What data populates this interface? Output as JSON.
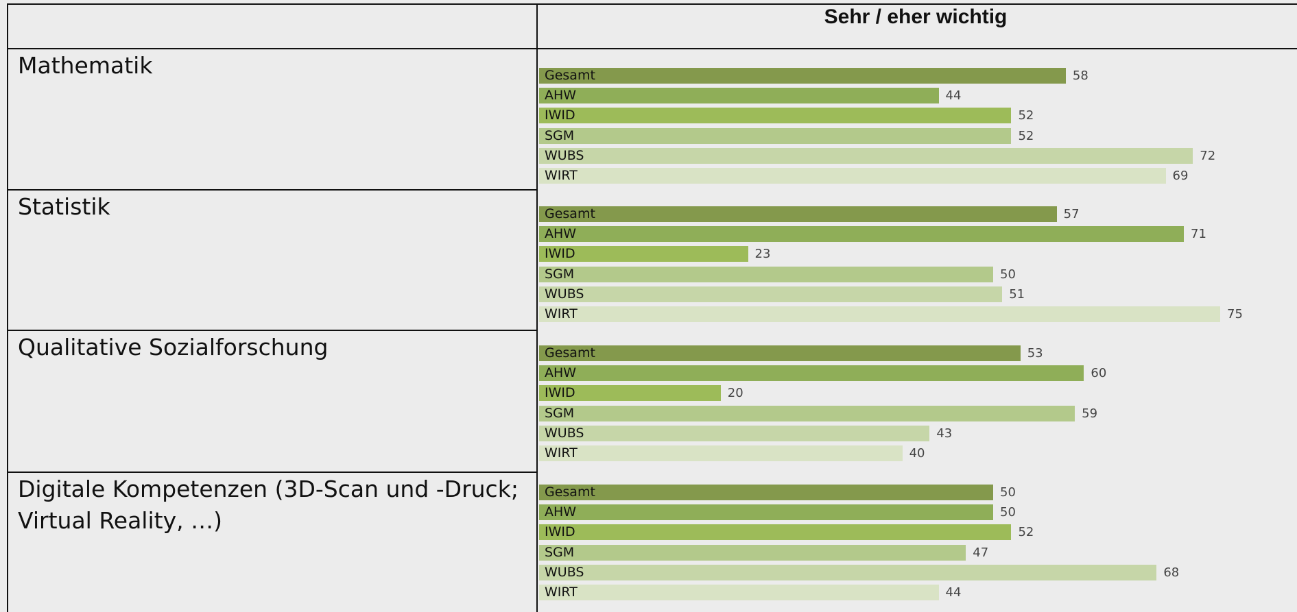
{
  "header": "Sehr / eher wichtig",
  "chart_data": [
    {
      "type": "bar",
      "title": "Mathematik",
      "categories": [
        "Gesamt",
        "AHW",
        "IWID",
        "SGM",
        "WUBS",
        "WIRT"
      ],
      "values": [
        58,
        44,
        52,
        52,
        72,
        69
      ],
      "colors": [
        "#84994c",
        "#8fae58",
        "#9dbb59",
        "#b3c98b",
        "#c6d6a8",
        "#d9e3c5"
      ]
    },
    {
      "type": "bar",
      "title": "Statistik",
      "categories": [
        "Gesamt",
        "AHW",
        "IWID",
        "SGM",
        "WUBS",
        "WIRT"
      ],
      "values": [
        57,
        71,
        23,
        50,
        51,
        75
      ],
      "colors": [
        "#84994c",
        "#8fae58",
        "#9dbb59",
        "#b3c98b",
        "#c6d6a8",
        "#d9e3c5"
      ]
    },
    {
      "type": "bar",
      "title": "Qualitative Sozialforschung",
      "categories": [
        "Gesamt",
        "AHW",
        "IWID",
        "SGM",
        "WUBS",
        "WIRT"
      ],
      "values": [
        53,
        60,
        20,
        59,
        43,
        40
      ],
      "colors": [
        "#84994c",
        "#8fae58",
        "#9dbb59",
        "#b3c98b",
        "#c6d6a8",
        "#d9e3c5"
      ]
    },
    {
      "type": "bar",
      "title": "Digitale Kompetenzen (3D-Scan und -Druck; Virtual Reality, …)",
      "categories": [
        "Gesamt",
        "AHW",
        "IWID",
        "SGM",
        "WUBS",
        "WIRT"
      ],
      "values": [
        50,
        50,
        52,
        47,
        68,
        44
      ],
      "colors": [
        "#84994c",
        "#8fae58",
        "#9dbb59",
        "#b3c98b",
        "#c6d6a8",
        "#d9e3c5"
      ]
    }
  ]
}
